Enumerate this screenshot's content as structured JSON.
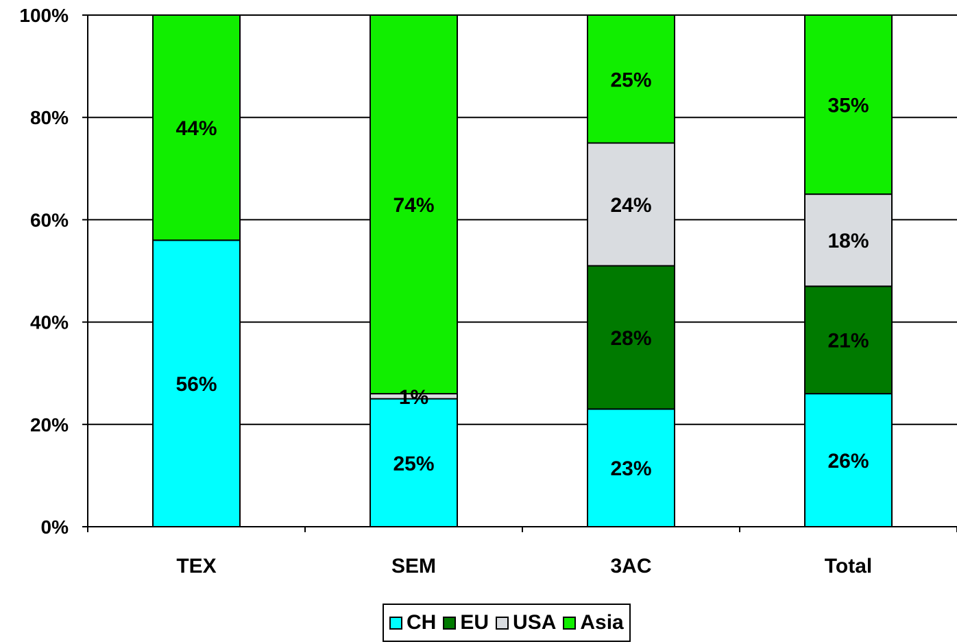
{
  "chart_data": {
    "type": "bar",
    "stacked": true,
    "normalized": true,
    "categories": [
      "TEX",
      "SEM",
      "3AC",
      "Total"
    ],
    "series": [
      {
        "name": "CH",
        "color": "#00FFFF",
        "values": [
          56,
          25,
          23,
          26
        ],
        "labels": [
          "56%",
          "25%",
          "23%",
          "26%"
        ]
      },
      {
        "name": "EU",
        "color": "#007A00",
        "values": [
          0,
          0,
          28,
          21
        ],
        "labels": [
          "",
          "",
          "28%",
          "21%"
        ]
      },
      {
        "name": "USA",
        "color": "#D9DCE0",
        "values": [
          0,
          1,
          24,
          18
        ],
        "labels": [
          "",
          "1%",
          "24%",
          "18%"
        ]
      },
      {
        "name": "Asia",
        "color": "#11EE00",
        "values": [
          44,
          74,
          25,
          35
        ],
        "labels": [
          "44%",
          "74%",
          "25%",
          "35%"
        ]
      }
    ],
    "ylim": [
      0,
      100
    ],
    "yticks": [
      "0%",
      "20%",
      "40%",
      "60%",
      "80%",
      "100%"
    ],
    "grid": true,
    "legend": "bottom"
  }
}
